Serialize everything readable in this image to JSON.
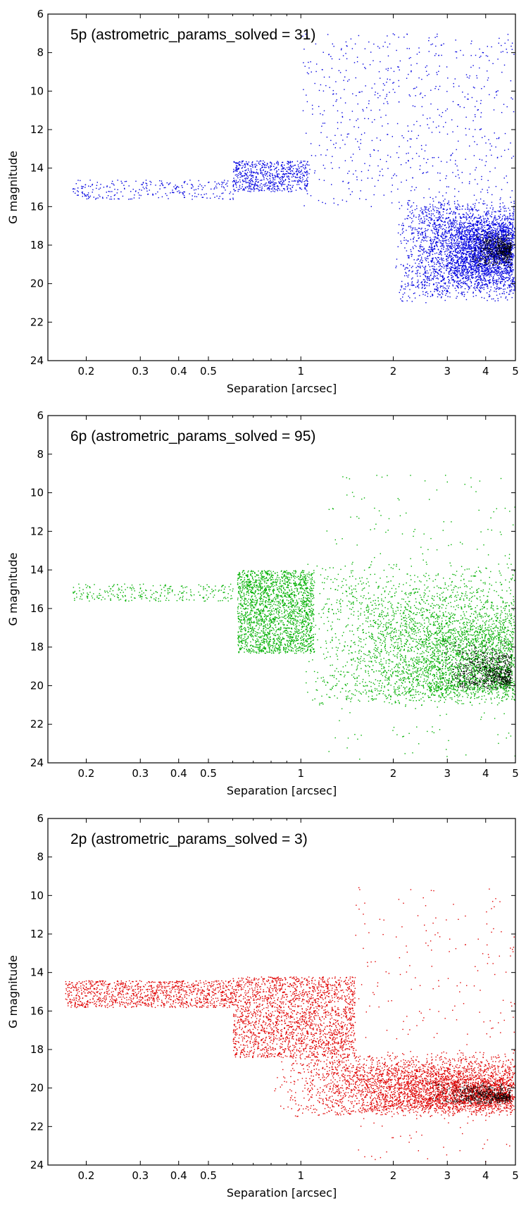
{
  "chart_data": [
    {
      "type": "scatter",
      "title": "5p (astrometric_params_solved = 31)",
      "xlabel": "Separation [arcsec]",
      "ylabel": "G magnitude",
      "xscale": "log",
      "xlim": [
        0.15,
        5
      ],
      "ylim": [
        24,
        6
      ],
      "y_inverted": true,
      "xticks": [
        0.2,
        0.3,
        0.4,
        0.5,
        1,
        2,
        3,
        4,
        5
      ],
      "xtick_labels": [
        "0.2",
        "0.3",
        "0.4",
        "0.5",
        "1",
        "2",
        "3",
        "4",
        "5"
      ],
      "yticks": [
        6,
        8,
        10,
        12,
        14,
        16,
        18,
        20,
        22,
        24
      ],
      "ytick_labels": [
        "6",
        "8",
        "10",
        "12",
        "14",
        "16",
        "18",
        "20",
        "22",
        "24"
      ],
      "grid": false,
      "color": "#0000e0",
      "dense_color": "#000018",
      "density_regions": [
        {
          "x": [
            0.18,
            0.6
          ],
          "y": [
            14.6,
            15.6
          ],
          "density": "sparse"
        },
        {
          "x": [
            0.6,
            1.05
          ],
          "y": [
            13.6,
            15.2
          ],
          "density": "low"
        },
        {
          "x": [
            1.0,
            5.0
          ],
          "y": [
            7.0,
            16.0
          ],
          "density": "low"
        },
        {
          "x": [
            2.0,
            5.0
          ],
          "y": [
            15.5,
            21.0
          ],
          "density": "very high",
          "peak": [
            4.8,
            18.2
          ]
        }
      ]
    },
    {
      "type": "scatter",
      "title": "6p (astrometric_params_solved = 95)",
      "xlabel": "Separation [arcsec]",
      "ylabel": "G magnitude",
      "xscale": "log",
      "xlim": [
        0.15,
        5
      ],
      "ylim": [
        24,
        6
      ],
      "y_inverted": true,
      "xticks": [
        0.2,
        0.3,
        0.4,
        0.5,
        1,
        2,
        3,
        4,
        5
      ],
      "xtick_labels": [
        "0.2",
        "0.3",
        "0.4",
        "0.5",
        "1",
        "2",
        "3",
        "4",
        "5"
      ],
      "yticks": [
        6,
        8,
        10,
        12,
        14,
        16,
        18,
        20,
        22,
        24
      ],
      "ytick_labels": [
        "6",
        "8",
        "10",
        "12",
        "14",
        "16",
        "18",
        "20",
        "22",
        "24"
      ],
      "grid": false,
      "color": "#00b000",
      "dense_color": "#001000",
      "density_regions": [
        {
          "x": [
            0.18,
            0.6
          ],
          "y": [
            14.7,
            15.6
          ],
          "density": "sparse"
        },
        {
          "x": [
            0.62,
            1.1
          ],
          "y": [
            14.0,
            18.3
          ],
          "density": "high"
        },
        {
          "x": [
            1.0,
            5.0
          ],
          "y": [
            13.5,
            21.0
          ],
          "density": "very high",
          "peak": [
            4.8,
            19.8
          ]
        },
        {
          "x": [
            1.2,
            5.0
          ],
          "y": [
            9.0,
            23.8
          ],
          "density": "sparse"
        }
      ]
    },
    {
      "type": "scatter",
      "title": "2p (astrometric_params_solved = 3)",
      "xlabel": "Separation [arcsec]",
      "ylabel": "G magnitude",
      "xscale": "log",
      "xlim": [
        0.15,
        5
      ],
      "ylim": [
        24,
        6
      ],
      "y_inverted": true,
      "xticks": [
        0.2,
        0.3,
        0.4,
        0.5,
        1,
        2,
        3,
        4,
        5
      ],
      "xtick_labels": [
        "0.2",
        "0.3",
        "0.4",
        "0.5",
        "1",
        "2",
        "3",
        "4",
        "5"
      ],
      "yticks": [
        6,
        8,
        10,
        12,
        14,
        16,
        18,
        20,
        22,
        24
      ],
      "ytick_labels": [
        "6",
        "8",
        "10",
        "12",
        "14",
        "16",
        "18",
        "20",
        "22",
        "24"
      ],
      "grid": false,
      "color": "#e00000",
      "dense_color": "#180000",
      "density_regions": [
        {
          "x": [
            0.17,
            0.6
          ],
          "y": [
            14.4,
            15.8
          ],
          "density": "medium"
        },
        {
          "x": [
            0.6,
            1.5
          ],
          "y": [
            14.2,
            18.4
          ],
          "density": "high"
        },
        {
          "x": [
            0.8,
            5.0
          ],
          "y": [
            18.0,
            21.5
          ],
          "density": "very high",
          "peak": [
            4.8,
            20.5
          ]
        },
        {
          "x": [
            1.5,
            5.0
          ],
          "y": [
            9.5,
            23.8
          ],
          "density": "sparse"
        }
      ]
    }
  ]
}
